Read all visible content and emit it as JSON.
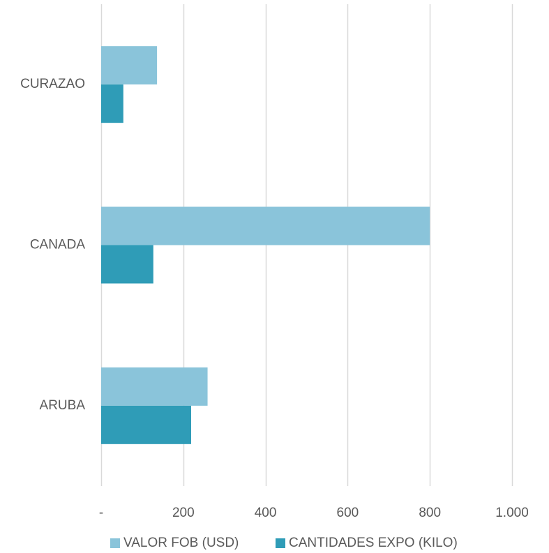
{
  "chart_data": {
    "type": "bar",
    "orientation": "horizontal",
    "categories": [
      "CURAZAO",
      "CANADA",
      "ARUBA"
    ],
    "series": [
      {
        "name": "VALOR FOB (USD)",
        "values": [
          136,
          800,
          259
        ],
        "color": "#8ac4da"
      },
      {
        "name": "CANTIDADES EXPO (KILO)",
        "values": [
          54,
          127,
          219
        ],
        "color": "#2f9cb7"
      }
    ],
    "xlim": [
      0,
      1000
    ],
    "x_ticks": [
      {
        "value": 0,
        "label": "-"
      },
      {
        "value": 200,
        "label": "200"
      },
      {
        "value": 400,
        "label": "400"
      },
      {
        "value": 600,
        "label": "600"
      },
      {
        "value": 800,
        "label": "800"
      },
      {
        "value": 1000,
        "label": "1.000"
      }
    ],
    "grid": true,
    "legend_position": "bottom",
    "title": "",
    "xlabel": "",
    "ylabel": ""
  }
}
